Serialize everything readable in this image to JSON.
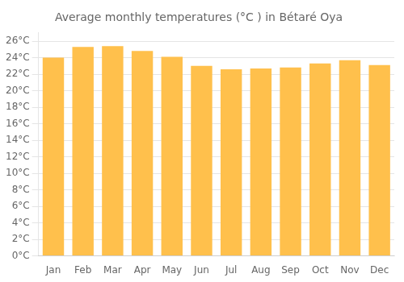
{
  "chart_data": {
    "type": "bar",
    "title": "Average monthly temperatures (°C ) in Bétaré Oya",
    "categories": [
      "Jan",
      "Feb",
      "Mar",
      "Apr",
      "May",
      "Jun",
      "Jul",
      "Aug",
      "Sep",
      "Oct",
      "Nov",
      "Dec"
    ],
    "values": [
      24.0,
      25.3,
      25.4,
      24.8,
      24.1,
      23.0,
      22.6,
      22.7,
      22.8,
      23.3,
      23.7,
      23.1
    ],
    "color": "#FFC04C",
    "ylim": [
      0,
      27
    ],
    "yticks": [
      {
        "value": 0,
        "label": "0°C"
      },
      {
        "value": 2,
        "label": "2°C"
      },
      {
        "value": 4,
        "label": "4°C"
      },
      {
        "value": 6,
        "label": "6°C"
      },
      {
        "value": 8,
        "label": "8°C"
      },
      {
        "value": 10,
        "label": "10°C"
      },
      {
        "value": 12,
        "label": "12°C"
      },
      {
        "value": 14,
        "label": "14°C"
      },
      {
        "value": 16,
        "label": "16°C"
      },
      {
        "value": 18,
        "label": "18°C"
      },
      {
        "value": 20,
        "label": "20°C"
      },
      {
        "value": 22,
        "label": "22°C"
      },
      {
        "value": 24,
        "label": "24°C"
      },
      {
        "value": 26,
        "label": "26°C"
      }
    ],
    "grid": true
  }
}
